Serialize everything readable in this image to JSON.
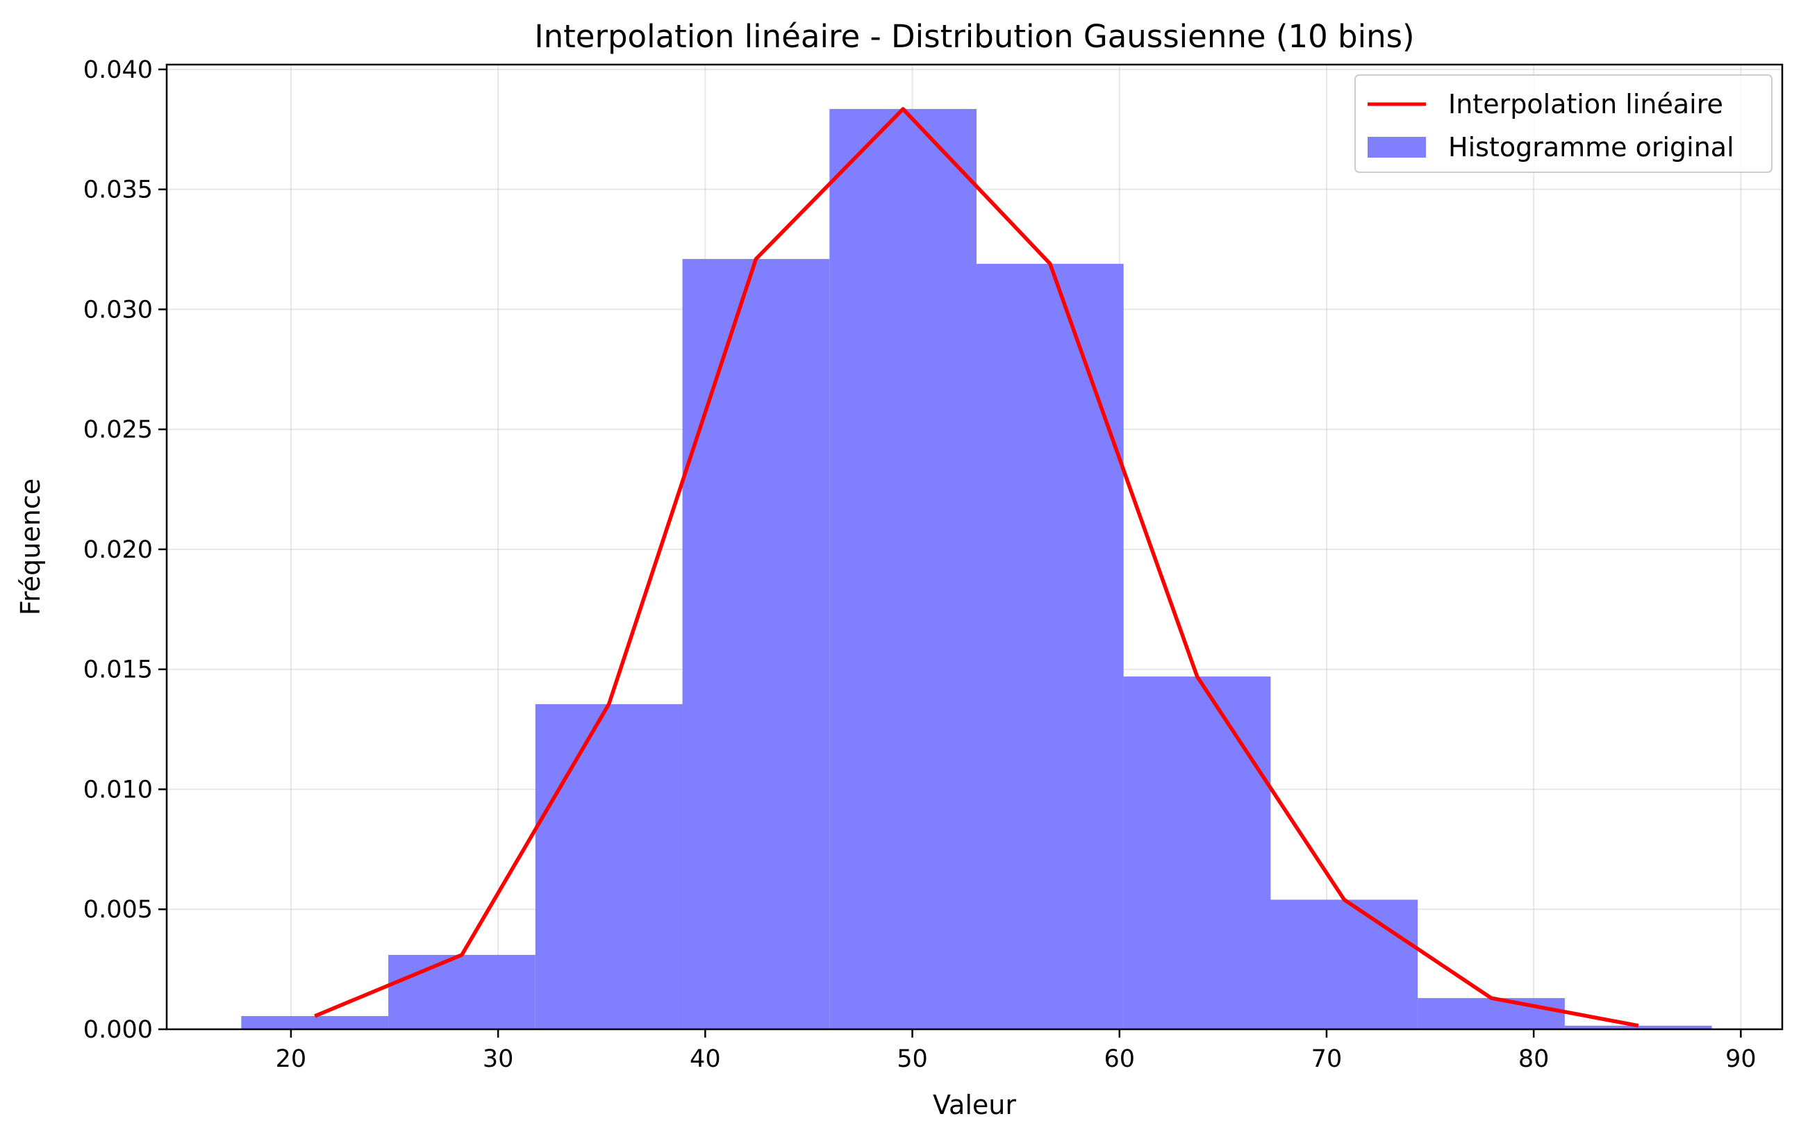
{
  "chart_data": {
    "type": "bar",
    "title": "Interpolation linéaire - Distribution Gaussienne (10 bins)",
    "xlabel": "Valeur",
    "ylabel": "Fréquence",
    "xlim": [
      14,
      92
    ],
    "ylim": [
      0,
      0.0402
    ],
    "x_ticks": [
      20,
      30,
      40,
      50,
      60,
      70,
      80,
      90
    ],
    "y_ticks": [
      0.0,
      0.005,
      0.01,
      0.015,
      0.02,
      0.025,
      0.03,
      0.035,
      0.04
    ],
    "y_tick_labels": [
      "0.000",
      "0.005",
      "0.010",
      "0.015",
      "0.020",
      "0.025",
      "0.030",
      "0.035",
      "0.040"
    ],
    "grid": true,
    "legend_position": "top-right",
    "histogram": {
      "name": "Histogramme original",
      "color": "#8080ff",
      "bin_edges": [
        17.6,
        24.7,
        31.8,
        38.9,
        46.0,
        53.1,
        60.2,
        67.3,
        74.4,
        81.5,
        88.6
      ],
      "values": [
        0.00055,
        0.0031,
        0.01355,
        0.0321,
        0.03835,
        0.0319,
        0.0147,
        0.0054,
        0.0013,
        0.00015
      ]
    },
    "line": {
      "name": "Interpolation linéaire",
      "color": "#ff0000",
      "x": [
        21.15,
        28.25,
        35.35,
        42.45,
        49.55,
        56.65,
        63.75,
        70.85,
        77.95,
        85.05
      ],
      "y": [
        0.00055,
        0.0031,
        0.01355,
        0.0321,
        0.03835,
        0.0319,
        0.0147,
        0.0054,
        0.0013,
        0.00015
      ]
    }
  }
}
